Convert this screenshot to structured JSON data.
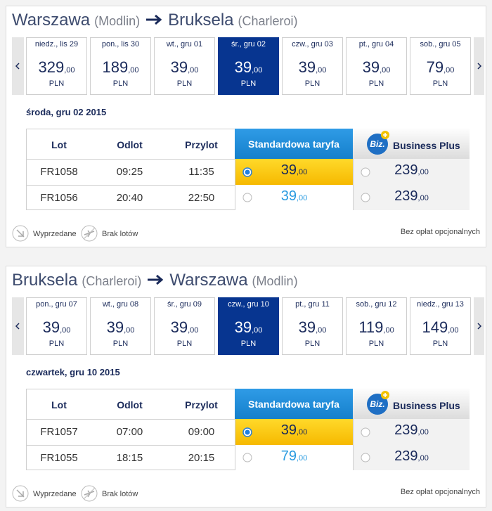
{
  "sections": [
    {
      "origin": "Warszawa",
      "origin_airport": "(Modlin)",
      "destination": "Bruksela",
      "destination_airport": "(Charleroi)",
      "selected_index": 3,
      "dates": [
        {
          "label": "niedz., lis 29",
          "price": "329",
          "cents": ",00",
          "currency": "PLN"
        },
        {
          "label": "pon., lis 30",
          "price": "189",
          "cents": ",00",
          "currency": "PLN"
        },
        {
          "label": "wt., gru 01",
          "price": "39",
          "cents": ",00",
          "currency": "PLN"
        },
        {
          "label": "śr., gru 02",
          "price": "39",
          "cents": ",00",
          "currency": "PLN"
        },
        {
          "label": "czw., gru 03",
          "price": "39",
          "cents": ",00",
          "currency": "PLN"
        },
        {
          "label": "pt., gru 04",
          "price": "39",
          "cents": ",00",
          "currency": "PLN"
        },
        {
          "label": "sob., gru 05",
          "price": "79",
          "cents": ",00",
          "currency": "PLN"
        }
      ],
      "selected_date": "środa, gru 02 2015",
      "table": {
        "headers": [
          "Lot",
          "Odlot",
          "Przylot"
        ],
        "standard": "Standardowa taryfa",
        "badge": "Biz.",
        "business": "Business Plus",
        "rows": [
          {
            "flight": "FR1058",
            "departure": "09:25",
            "arrival": "11:35",
            "standard_price": "39",
            "standard_cents": ",00",
            "business_price": "239",
            "business_cents": ",00"
          },
          {
            "flight": "FR1056",
            "departure": "20:40",
            "arrival": "22:50",
            "standard_price": "39",
            "standard_cents": ",00",
            "business_price": "239",
            "business_cents": ",00"
          }
        ]
      },
      "legend": {
        "sold_out": "Wyprzedane",
        "no_flights": "Brak lotów",
        "note": "Bez opłat opcjonalnych"
      }
    },
    {
      "origin": "Bruksela",
      "origin_airport": "(Charleroi)",
      "destination": "Warszawa",
      "destination_airport": "(Modlin)",
      "selected_index": 3,
      "dates": [
        {
          "label": "pon., gru 07",
          "price": "39",
          "cents": ",00",
          "currency": "PLN"
        },
        {
          "label": "wt., gru 08",
          "price": "39",
          "cents": ",00",
          "currency": "PLN"
        },
        {
          "label": "śr., gru 09",
          "price": "39",
          "cents": ",00",
          "currency": "PLN"
        },
        {
          "label": "czw., gru 10",
          "price": "39",
          "cents": ",00",
          "currency": "PLN"
        },
        {
          "label": "pt., gru 11",
          "price": "39",
          "cents": ",00",
          "currency": "PLN"
        },
        {
          "label": "sob., gru 12",
          "price": "119",
          "cents": ",00",
          "currency": "PLN"
        },
        {
          "label": "niedz., gru 13",
          "price": "149",
          "cents": ",00",
          "currency": "PLN"
        }
      ],
      "selected_date": "czwartek, gru 10 2015",
      "table": {
        "headers": [
          "Lot",
          "Odlot",
          "Przylot"
        ],
        "standard": "Standardowa taryfa",
        "badge": "Biz.",
        "business": "Business Plus",
        "rows": [
          {
            "flight": "FR1057",
            "departure": "07:00",
            "arrival": "09:00",
            "standard_price": "39",
            "standard_cents": ",00",
            "business_price": "239",
            "business_cents": ",00"
          },
          {
            "flight": "FR1055",
            "departure": "18:15",
            "arrival": "20:15",
            "standard_price": "79",
            "standard_cents": ",00",
            "business_price": "239",
            "business_cents": ",00"
          }
        ]
      },
      "legend": {
        "sold_out": "Wyprzedane",
        "no_flights": "Brak lotów",
        "note": "Bez opłat opcjonalnych"
      }
    }
  ]
}
